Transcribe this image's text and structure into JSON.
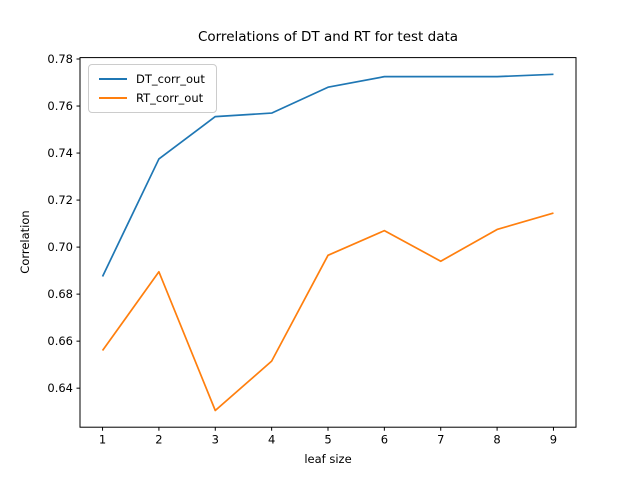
{
  "figure": {
    "background": "#ffffff",
    "frame_color": "#000000"
  },
  "chart_data": {
    "type": "line",
    "title": "Correlations of DT and RT for test data",
    "xlabel": "leaf size",
    "ylabel": "Correlation",
    "x": [
      1,
      2,
      3,
      4,
      5,
      6,
      7,
      8,
      9
    ],
    "series": [
      {
        "name": "DT_corr_out",
        "color": "#1f77b4",
        "values": [
          0.6875,
          0.7375,
          0.7555,
          0.757,
          0.768,
          0.7725,
          0.7725,
          0.7725,
          0.7735
        ]
      },
      {
        "name": "RT_corr_out",
        "color": "#ff7f0e",
        "values": [
          0.656,
          0.6895,
          0.6305,
          0.6515,
          0.6965,
          0.707,
          0.694,
          0.7075,
          0.7145
        ]
      }
    ],
    "xlim": [
      0.6,
      9.4
    ],
    "ylim": [
      0.6234,
      0.7806
    ],
    "x_ticks": [
      "1",
      "2",
      "3",
      "4",
      "5",
      "6",
      "7",
      "8",
      "9"
    ],
    "y_ticks": [
      "0.64",
      "0.66",
      "0.68",
      "0.70",
      "0.72",
      "0.74",
      "0.76",
      "0.78"
    ],
    "grid": false,
    "legend_position": "upper left"
  }
}
